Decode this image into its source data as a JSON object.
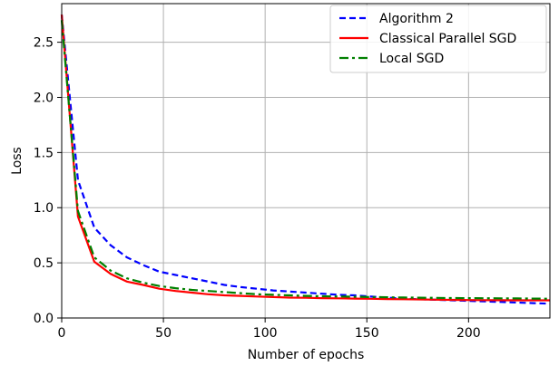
{
  "chart_data": {
    "type": "line",
    "title": "",
    "xlabel": "Number of epochs",
    "ylabel": "Loss",
    "xlim": [
      0,
      240
    ],
    "ylim": [
      0,
      2.85
    ],
    "xticks": [
      0,
      50,
      100,
      150,
      200
    ],
    "xtick_labels": [
      "0",
      "50",
      "100",
      "150",
      "200"
    ],
    "yticks": [
      0.0,
      0.5,
      1.0,
      1.5,
      2.0,
      2.5
    ],
    "ytick_labels": [
      "0.0",
      "0.5",
      "1.0",
      "1.5",
      "2.0",
      "2.5"
    ],
    "grid": true,
    "legend_position": "top-right",
    "series": [
      {
        "name": "Algorithm 2",
        "color": "#0000ff",
        "style": "dashed",
        "x": [
          0,
          8,
          16,
          24,
          32,
          40,
          48,
          56,
          64,
          72,
          80,
          88,
          96,
          104,
          112,
          120,
          128,
          136,
          144,
          152,
          160,
          168,
          176,
          184,
          192,
          200,
          208,
          216,
          224,
          232,
          240
        ],
        "y": [
          2.75,
          1.25,
          0.82,
          0.66,
          0.55,
          0.48,
          0.42,
          0.39,
          0.36,
          0.33,
          0.3,
          0.28,
          0.265,
          0.25,
          0.24,
          0.23,
          0.22,
          0.21,
          0.205,
          0.195,
          0.185,
          0.175,
          0.17,
          0.165,
          0.16,
          0.155,
          0.15,
          0.145,
          0.14,
          0.135,
          0.13
        ]
      },
      {
        "name": "Classical Parallel SGD",
        "color": "#ff0000",
        "style": "solid",
        "x": [
          0,
          8,
          16,
          24,
          32,
          40,
          48,
          56,
          64,
          72,
          80,
          88,
          96,
          104,
          112,
          120,
          128,
          136,
          144,
          152,
          160,
          168,
          176,
          184,
          192,
          200,
          208,
          216,
          224,
          232,
          240
        ],
        "y": [
          2.75,
          0.92,
          0.51,
          0.4,
          0.33,
          0.3,
          0.265,
          0.245,
          0.23,
          0.215,
          0.205,
          0.2,
          0.195,
          0.19,
          0.185,
          0.183,
          0.18,
          0.178,
          0.176,
          0.174,
          0.172,
          0.17,
          0.168,
          0.166,
          0.164,
          0.163,
          0.162,
          0.161,
          0.16,
          0.16,
          0.16
        ]
      },
      {
        "name": "Local SGD",
        "color": "#008000",
        "style": "dashdot",
        "x": [
          0,
          8,
          16,
          24,
          32,
          40,
          48,
          56,
          64,
          72,
          80,
          88,
          96,
          104,
          112,
          120,
          128,
          136,
          144,
          152,
          160,
          168,
          176,
          184,
          192,
          200,
          208,
          216,
          224,
          232,
          240
        ],
        "y": [
          2.7,
          0.97,
          0.55,
          0.43,
          0.36,
          0.32,
          0.29,
          0.27,
          0.255,
          0.245,
          0.235,
          0.225,
          0.215,
          0.21,
          0.205,
          0.2,
          0.197,
          0.195,
          0.193,
          0.19,
          0.188,
          0.186,
          0.184,
          0.182,
          0.181,
          0.18,
          0.179,
          0.178,
          0.177,
          0.176,
          0.175
        ]
      }
    ]
  }
}
